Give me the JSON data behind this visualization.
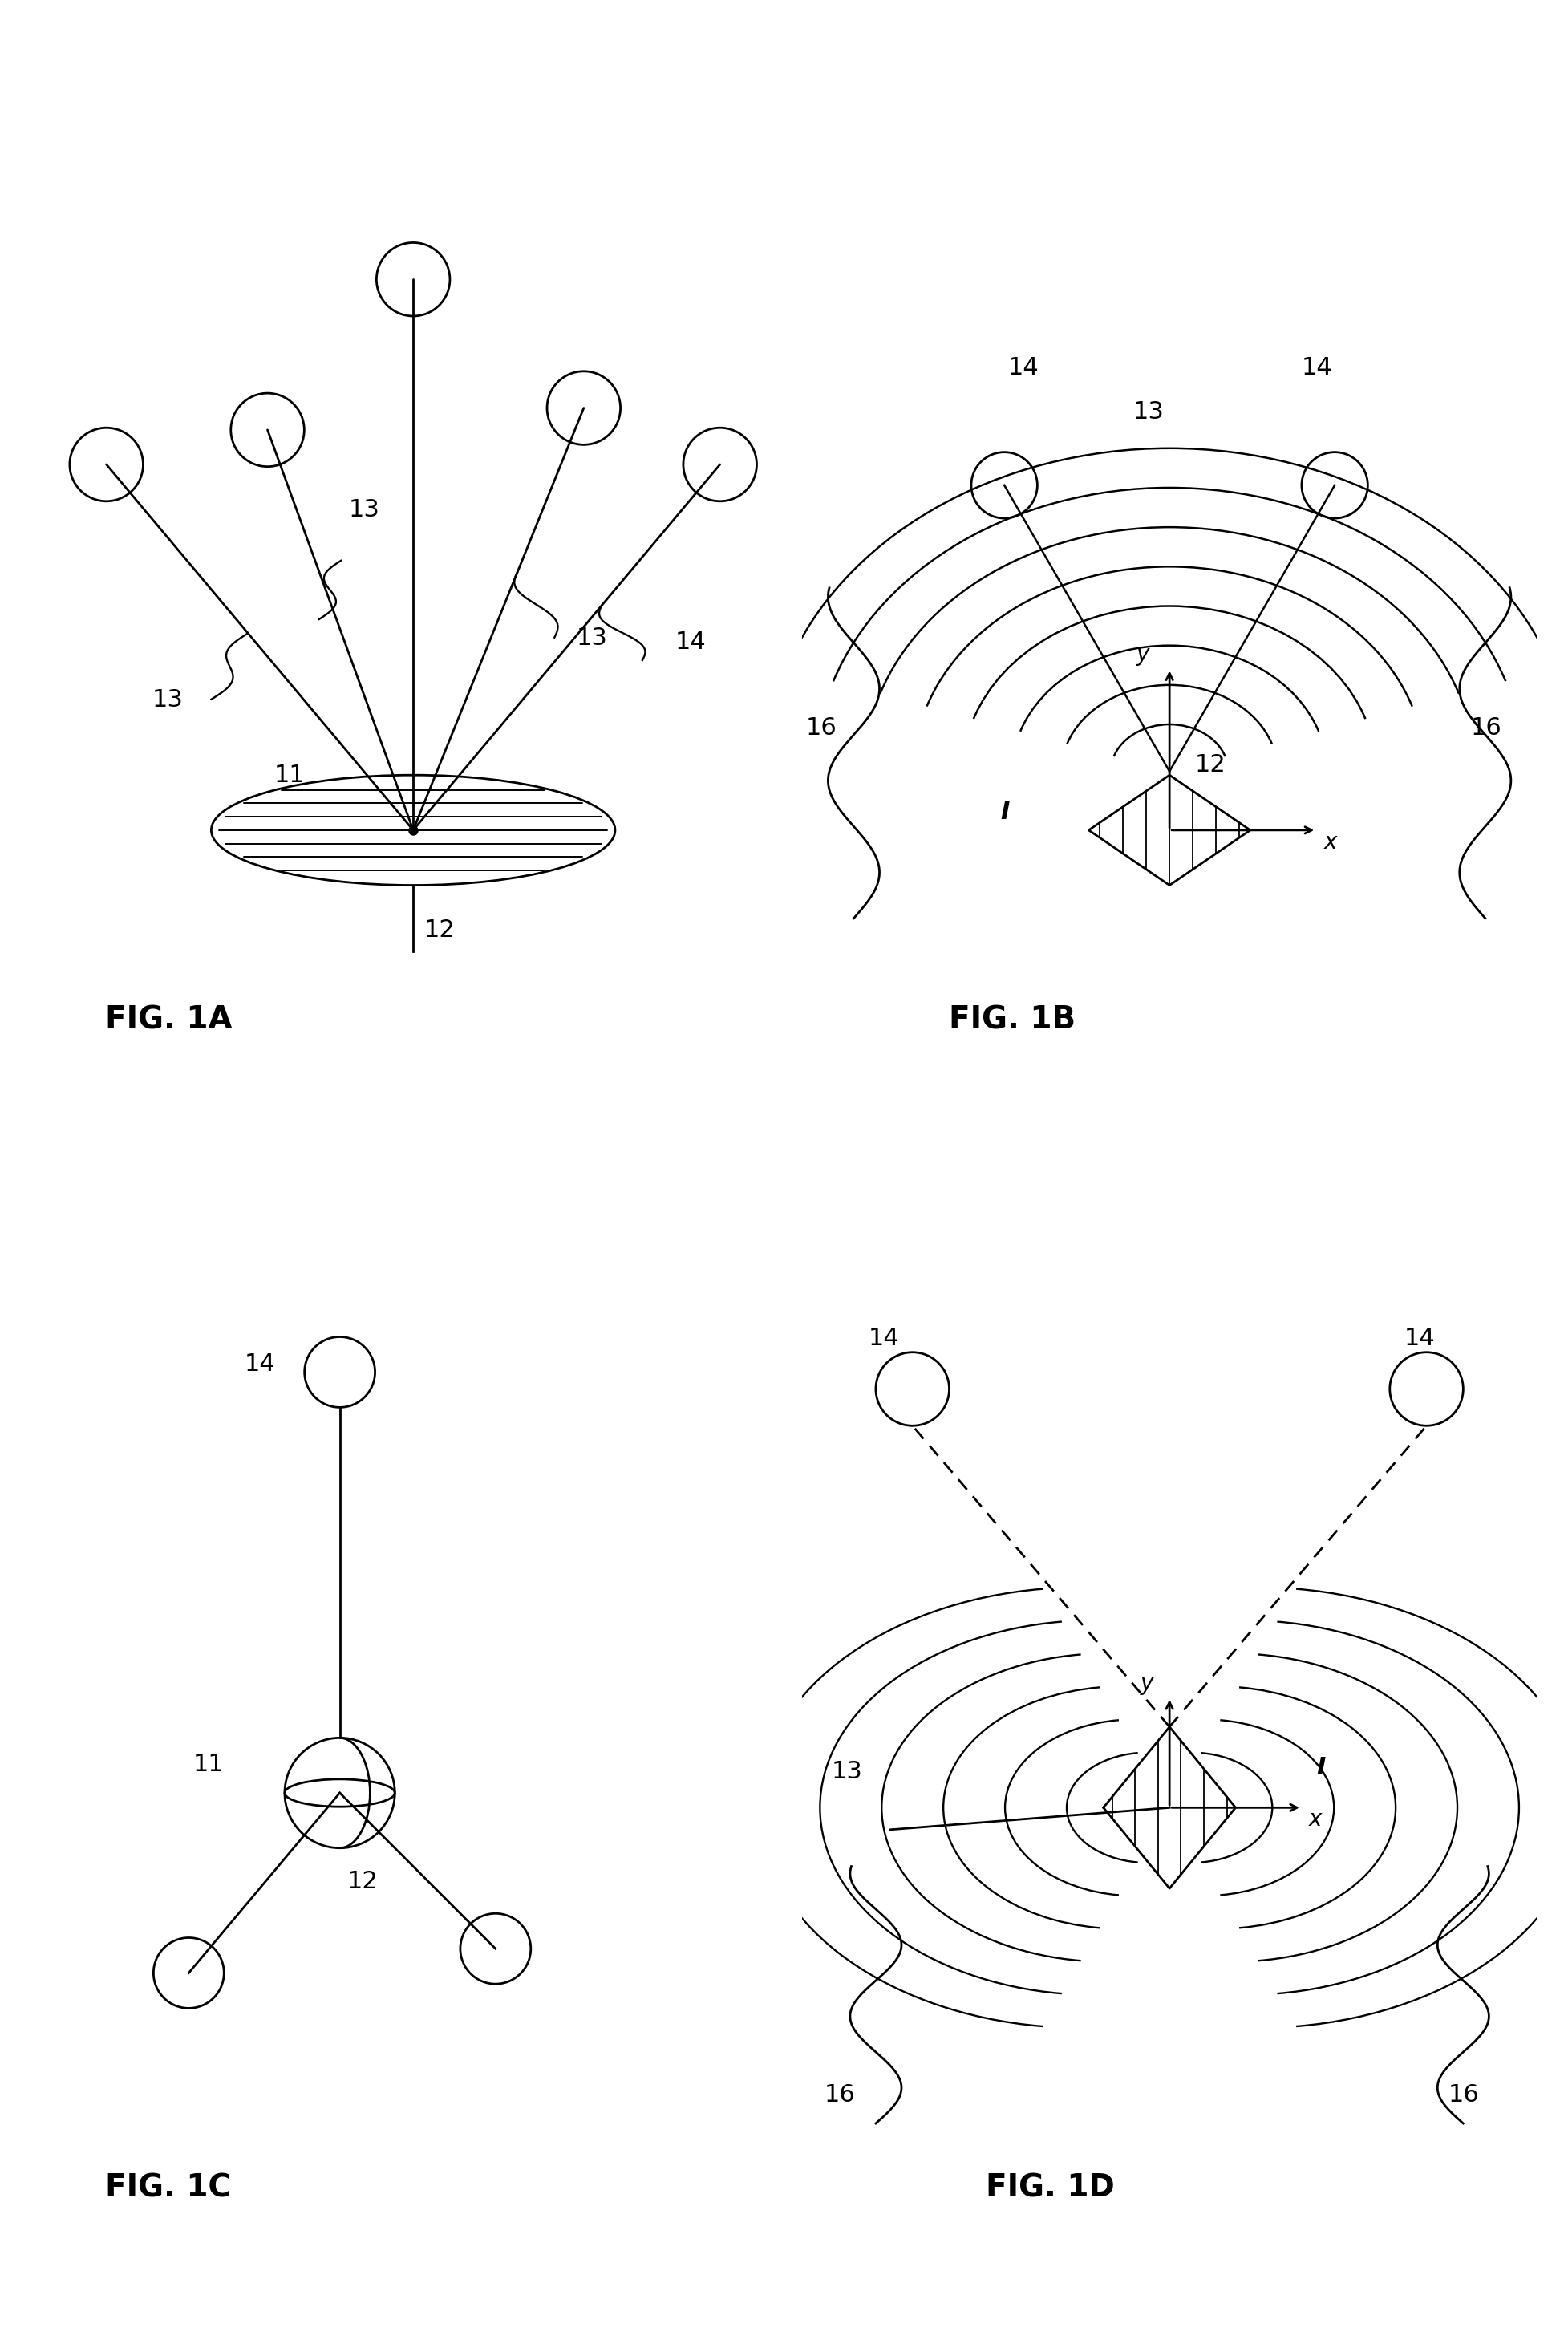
{
  "fig_labels": [
    "FIG. 1A",
    "FIG. 1B",
    "FIG. 1C",
    "FIG. 1D"
  ],
  "background_color": "#ffffff",
  "line_color": "#000000",
  "lw": 2.0,
  "font_size_label": 28,
  "font_size_num": 22
}
